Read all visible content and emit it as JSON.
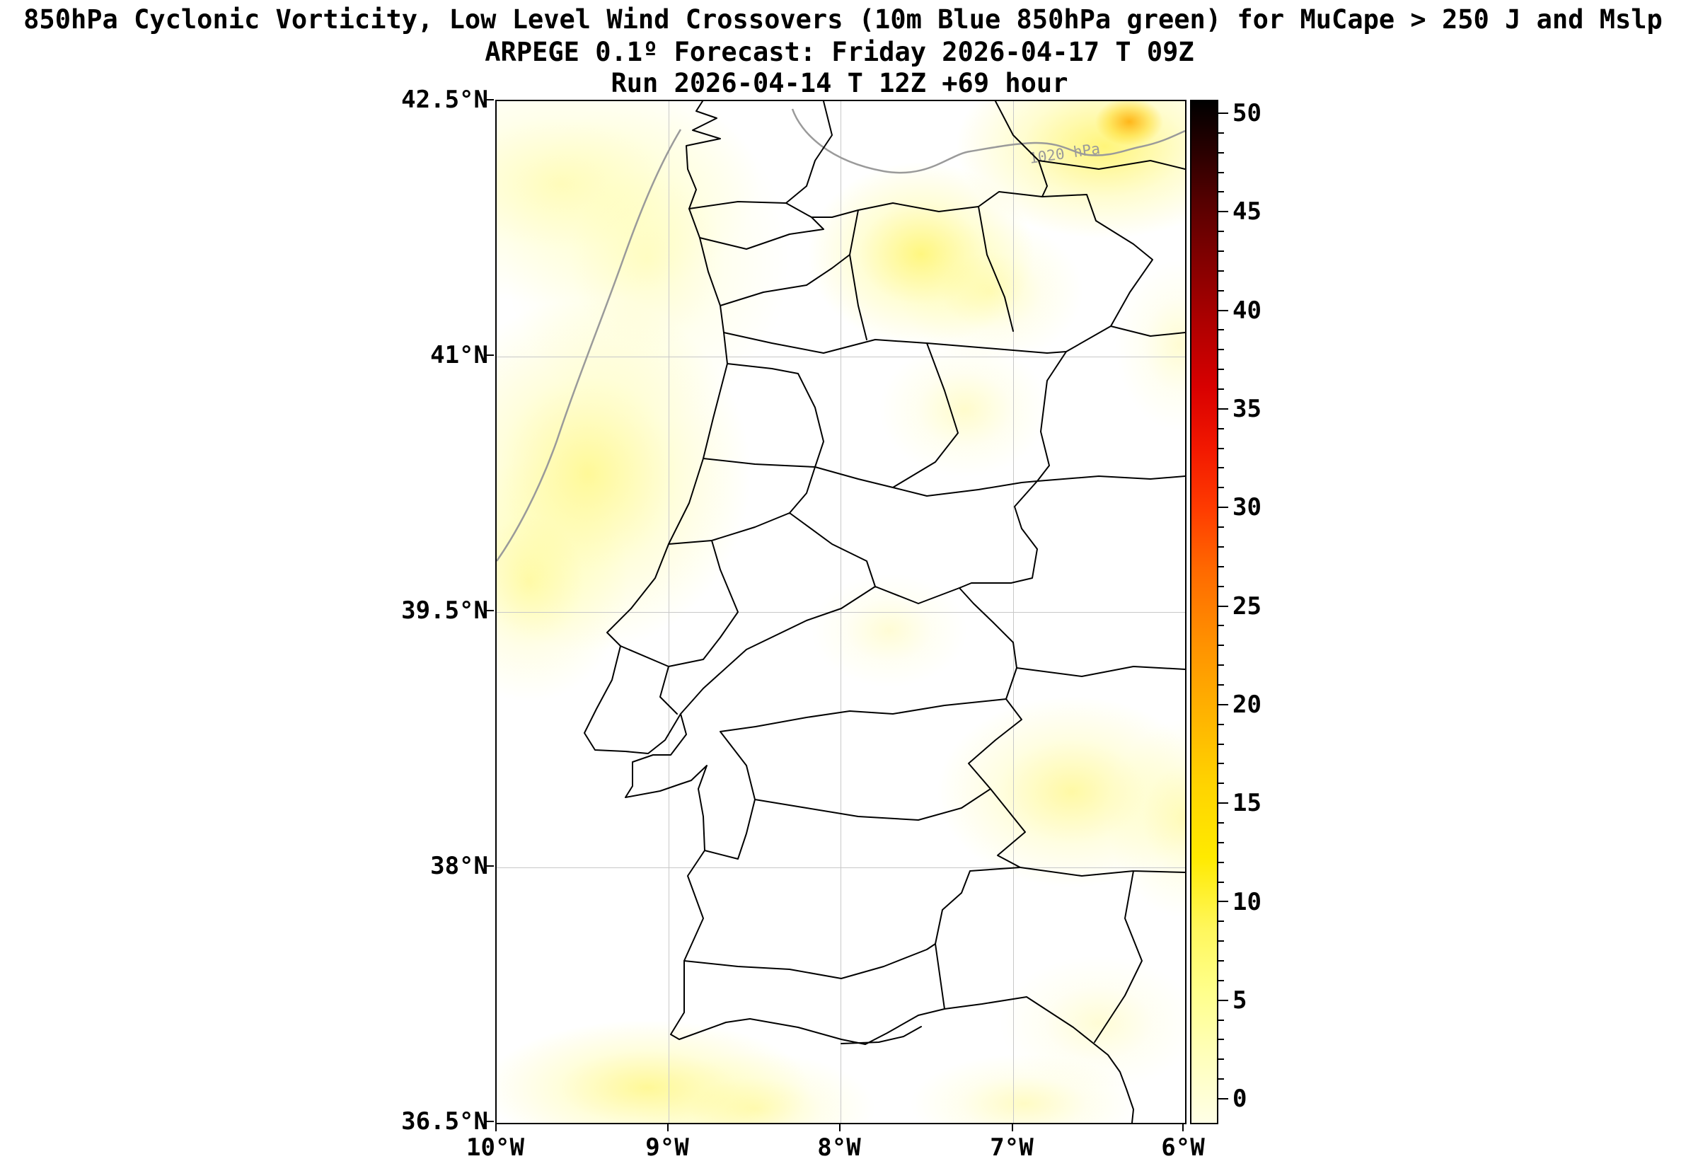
{
  "titles": {
    "line1": "850hPa Cyclonic Vorticity, Low Level Wind Crossovers (10m Blue 850hPa green) for MuCape > 250 J and Mslp",
    "line2": "ARPEGE 0.1º Forecast: Friday 2026-04-17 T 09Z",
    "line3": "Run 2026-04-14 T 12Z +69 hour"
  },
  "chart_data": {
    "type": "heatmap",
    "title": "850hPa Cyclonic Vorticity, Low Level Wind Crossovers (10m Blue 850hPa green) for MuCape > 250 J and Mslp",
    "model": "ARPEGE 0.1º",
    "forecast_valid": "Friday 2026-04-17 T 09Z",
    "run": "2026-04-14 T 12Z +69 hour",
    "region": "Portugal and western Iberia",
    "x_axis": {
      "ticks": [
        "10°W",
        "9°W",
        "8°W",
        "7°W",
        "6°W"
      ],
      "range_deg_lon": [
        -10,
        -6
      ]
    },
    "y_axis": {
      "ticks": [
        "42.5°N",
        "41°N",
        "39.5°N",
        "38°N",
        "36.5°N"
      ],
      "range_deg_lat": [
        36.5,
        42.5
      ]
    },
    "colorbar": {
      "ticks": [
        "0",
        "5",
        "10",
        "15",
        "20",
        "25",
        "30",
        "35",
        "40",
        "45",
        "50"
      ],
      "labeled_range": [
        0,
        50
      ],
      "minor_tick_step": 1,
      "scale_colors_bottom_to_top": [
        "#ffffe6",
        "#ffff8a",
        "#ffea00",
        "#ffb300",
        "#ff6a00",
        "#f21800",
        "#b00000",
        "#570000",
        "#000000"
      ]
    },
    "isobar_label": "1020 hPa",
    "grid": true,
    "boundary_line_color": "#000000",
    "isobar_line_color": "#9a9a9a",
    "vorticity_maxima_approx": [
      {
        "lon": -6.35,
        "lat": 42.35,
        "value": 16
      },
      {
        "lon": -6.2,
        "lat": 42.45,
        "value": 20
      },
      {
        "lon": -7.55,
        "lat": 41.95,
        "value": 10
      },
      {
        "lon": -9.55,
        "lat": 42.2,
        "value": 6
      },
      {
        "lon": -9.65,
        "lat": 40.4,
        "value": 8
      },
      {
        "lon": -8.3,
        "lat": 40.75,
        "value": 4
      },
      {
        "lon": -6.9,
        "lat": 38.5,
        "value": 8
      },
      {
        "lon": -6.1,
        "lat": 38.4,
        "value": 6
      },
      {
        "lon": -6.55,
        "lat": 36.9,
        "value": 4
      },
      {
        "lon": -8.6,
        "lat": 36.6,
        "value": 7
      },
      {
        "lon": -7.1,
        "lat": 36.55,
        "value": 5
      }
    ]
  }
}
